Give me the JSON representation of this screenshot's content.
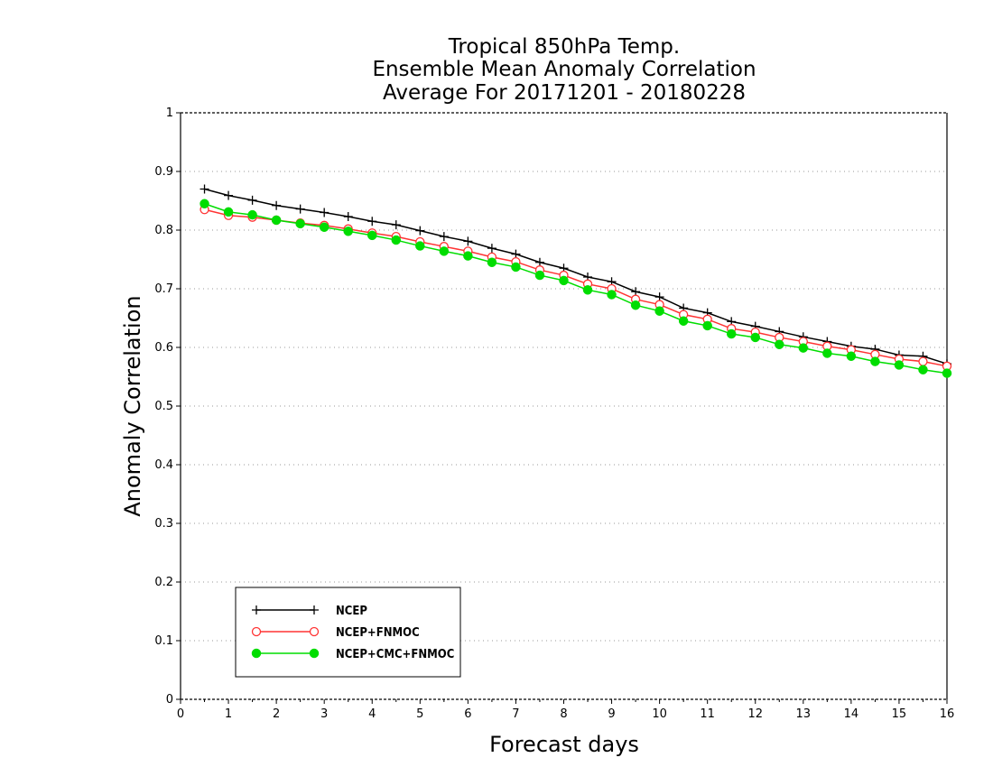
{
  "chart_data": {
    "type": "line",
    "title": [
      "Tropical 850hPa Temp.",
      "Ensemble Mean Anomaly Correlation",
      "Average For 20171201 - 20180228"
    ],
    "xlabel": "Forecast days",
    "ylabel": "Anomaly Correlation",
    "xlim": [
      0,
      16
    ],
    "ylim": [
      0,
      1
    ],
    "x_ticks": [
      "0",
      "1",
      "2",
      "3",
      "4",
      "5",
      "6",
      "7",
      "8",
      "9",
      "10",
      "11",
      "12",
      "13",
      "14",
      "15",
      "16"
    ],
    "y_ticks": [
      "0",
      "0.1",
      "0.2",
      "0.3",
      "0.4",
      "0.5",
      "0.6",
      "0.7",
      "0.8",
      "0.9",
      "1"
    ],
    "grid": true,
    "legend_position": "bottom-left",
    "x": [
      0.5,
      1,
      1.5,
      2,
      2.5,
      3,
      3.5,
      4,
      4.5,
      5,
      5.5,
      6,
      6.5,
      7,
      7.5,
      8,
      8.5,
      9,
      9.5,
      10,
      10.5,
      11,
      11.5,
      12,
      12.5,
      13,
      13.5,
      14,
      14.5,
      15,
      15.5,
      16
    ],
    "series": [
      {
        "name": "NCEP",
        "color": "#000000",
        "marker": "plus",
        "values": [
          0.87,
          0.859,
          0.851,
          0.842,
          0.836,
          0.83,
          0.823,
          0.815,
          0.809,
          0.799,
          0.789,
          0.781,
          0.769,
          0.759,
          0.745,
          0.735,
          0.72,
          0.712,
          0.695,
          0.686,
          0.667,
          0.659,
          0.644,
          0.636,
          0.627,
          0.618,
          0.61,
          0.602,
          0.597,
          0.587,
          0.585,
          0.572
        ]
      },
      {
        "name": "NCEP+FNMOC",
        "color": "#ff3333",
        "marker": "open-circle",
        "values": [
          0.835,
          0.825,
          0.822,
          0.817,
          0.812,
          0.808,
          0.802,
          0.795,
          0.789,
          0.78,
          0.772,
          0.764,
          0.754,
          0.746,
          0.732,
          0.723,
          0.708,
          0.7,
          0.682,
          0.673,
          0.656,
          0.648,
          0.632,
          0.626,
          0.617,
          0.61,
          0.602,
          0.596,
          0.588,
          0.58,
          0.576,
          0.568
        ]
      },
      {
        "name": "NCEP+CMC+FNMOC",
        "color": "#00dd00",
        "marker": "filled-circle",
        "values": [
          0.845,
          0.831,
          0.826,
          0.817,
          0.811,
          0.805,
          0.798,
          0.791,
          0.783,
          0.773,
          0.764,
          0.756,
          0.745,
          0.737,
          0.723,
          0.714,
          0.698,
          0.69,
          0.672,
          0.662,
          0.645,
          0.637,
          0.623,
          0.617,
          0.605,
          0.599,
          0.59,
          0.585,
          0.576,
          0.57,
          0.562,
          0.556
        ]
      }
    ]
  }
}
